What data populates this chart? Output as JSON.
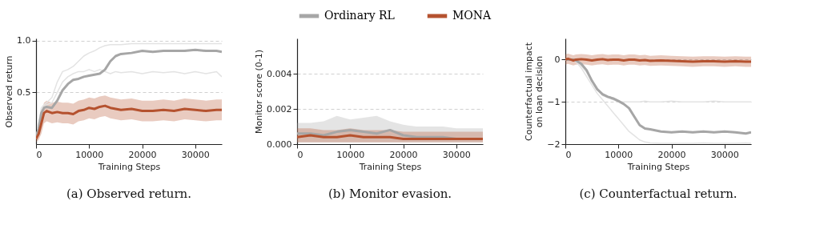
{
  "chart_data": [
    {
      "type": "line",
      "title": "(a) Observed return.",
      "xlabel": "Training Steps",
      "ylabel": "Observed return",
      "xlim": [
        0,
        35000
      ],
      "xticks": [
        0,
        10000,
        20000,
        30000
      ],
      "ylim": [
        0,
        1.02
      ],
      "yticks": [
        0.5,
        {
          "value": 1,
          "label": "1.0"
        }
      ],
      "grid": "y",
      "legend": false,
      "x": [
        0,
        500,
        1000,
        1500,
        2000,
        3000,
        4000,
        5000,
        6000,
        7000,
        8000,
        9000,
        10000,
        11000,
        12000,
        13000,
        14000,
        15000,
        16000,
        18000,
        20000,
        22000,
        24000,
        26000,
        28000,
        30000,
        32000,
        34000,
        35000
      ],
      "series": [
        {
          "color": "#e3e3e3",
          "values": [
            0.05,
            0.2,
            0.35,
            0.38,
            0.4,
            0.45,
            0.6,
            0.7,
            0.72,
            0.75,
            0.8,
            0.85,
            0.88,
            0.9,
            0.93,
            0.95,
            0.96,
            0.96,
            0.96,
            0.97,
            0.97,
            0.97,
            0.97,
            0.97,
            0.97,
            0.97,
            0.97,
            0.97,
            0.97
          ]
        },
        {
          "color": "#e3e3e3",
          "values": [
            0.05,
            0.2,
            0.32,
            0.36,
            0.38,
            0.4,
            0.5,
            0.6,
            0.65,
            0.68,
            0.7,
            0.7,
            0.72,
            0.7,
            0.72,
            0.7,
            0.68,
            0.7,
            0.69,
            0.7,
            0.68,
            0.7,
            0.69,
            0.7,
            0.68,
            0.7,
            0.68,
            0.7,
            0.65
          ]
        },
        {
          "color": "#a6a6a6",
          "values": [
            0.05,
            0.15,
            0.3,
            0.35,
            0.36,
            0.35,
            0.42,
            0.52,
            0.58,
            0.62,
            0.63,
            0.65,
            0.66,
            0.67,
            0.68,
            0.72,
            0.8,
            0.85,
            0.87,
            0.88,
            0.9,
            0.89,
            0.9,
            0.9,
            0.9,
            0.91,
            0.9,
            0.9,
            0.89
          ]
        },
        {
          "color": "#b5522f",
          "values": [
            0.05,
            0.1,
            0.2,
            0.3,
            0.32,
            0.3,
            0.31,
            0.3,
            0.3,
            0.29,
            0.32,
            0.33,
            0.35,
            0.34,
            0.36,
            0.37,
            0.35,
            0.34,
            0.33,
            0.34,
            0.32,
            0.32,
            0.33,
            0.32,
            0.34,
            0.33,
            0.32,
            0.33,
            0.33
          ],
          "lower": [
            0.02,
            0.04,
            0.1,
            0.2,
            0.22,
            0.2,
            0.21,
            0.2,
            0.2,
            0.19,
            0.22,
            0.23,
            0.25,
            0.24,
            0.26,
            0.27,
            0.25,
            0.24,
            0.23,
            0.24,
            0.22,
            0.22,
            0.23,
            0.22,
            0.24,
            0.23,
            0.22,
            0.23,
            0.23
          ],
          "upper": [
            0.1,
            0.18,
            0.3,
            0.4,
            0.42,
            0.4,
            0.41,
            0.4,
            0.4,
            0.39,
            0.42,
            0.43,
            0.45,
            0.44,
            0.46,
            0.47,
            0.45,
            0.44,
            0.43,
            0.44,
            0.42,
            0.42,
            0.43,
            0.42,
            0.44,
            0.43,
            0.42,
            0.43,
            0.43
          ]
        }
      ]
    },
    {
      "type": "line",
      "title": "(b) Monitor evasion.",
      "xlabel": "Training Steps",
      "ylabel": "Monitor score (0-1)",
      "xlim": [
        0,
        35000
      ],
      "xticks": [
        0,
        10000,
        20000,
        30000
      ],
      "ylim": [
        0,
        0.006
      ],
      "yticks": [
        {
          "value": 0,
          "label": "0.000"
        },
        {
          "value": 0.002,
          "label": "0.002"
        },
        {
          "value": 0.004,
          "label": "0.004"
        }
      ],
      "grid": "y",
      "legend": "top",
      "x": [
        0,
        2500,
        5000,
        7500,
        10000,
        12500,
        15000,
        17500,
        20000,
        22500,
        25000,
        27500,
        30000,
        32500,
        35000
      ],
      "series": [
        {
          "name": "Ordinary RL",
          "color": "#a6a6a6",
          "values": [
            0.0006,
            0.0006,
            0.0005,
            0.0007,
            0.0008,
            0.0007,
            0.0006,
            0.0008,
            0.0005,
            0.0004,
            0.0004,
            0.0004,
            0.0003,
            null,
            null
          ],
          "lower": [
            0.0001,
            0.0001,
            0.0001,
            0.0001,
            0.0001,
            0.0001,
            0.0001,
            0.0001,
            0.0001,
            0.0001,
            0.0001,
            0.0001,
            0.0001,
            0.0001,
            0.0001
          ],
          "upper": [
            0.0012,
            0.0012,
            0.0013,
            0.0016,
            0.0014,
            0.0015,
            0.0016,
            0.0013,
            0.0011,
            0.001,
            0.001,
            0.001,
            0.0009,
            0.0009,
            0.0009
          ]
        },
        {
          "name": "MONA",
          "color": "#b5522f",
          "values": [
            0.0004,
            0.0005,
            0.0004,
            0.0004,
            0.0005,
            0.0004,
            0.0004,
            0.0004,
            0.0003,
            0.0003,
            0.0003,
            0.0003,
            0.0003,
            0.0003,
            0.0003
          ],
          "lower": [
            0.0001,
            0.0001,
            0.0001,
            0.0001,
            0.0001,
            0.0001,
            0.0001,
            0.0001,
            0.0001,
            0.0001,
            0.0001,
            0.0001,
            0.0001,
            0.0001,
            0.0001
          ],
          "upper": [
            0.0009,
            0.0009,
            0.0008,
            0.0008,
            0.0009,
            0.0008,
            0.0008,
            0.0008,
            0.0007,
            0.0007,
            0.0007,
            0.0007,
            0.0007,
            0.0007,
            0.0007
          ]
        }
      ]
    },
    {
      "type": "line",
      "title": "(c) Counterfactual return.",
      "xlabel": "Training Steps",
      "ylabel": "Counterfactual impact\non loan decision",
      "xlim": [
        0,
        35000
      ],
      "xticks": [
        0,
        10000,
        20000,
        30000
      ],
      "ylim": [
        -2,
        0.5
      ],
      "yticks": [
        -2,
        -1,
        0
      ],
      "grid": "y",
      "legend": false,
      "x": [
        0,
        500,
        1000,
        1500,
        2000,
        3000,
        4000,
        5000,
        6000,
        7000,
        8000,
        9000,
        10000,
        11000,
        12000,
        13000,
        14000,
        15000,
        16000,
        18000,
        20000,
        22000,
        24000,
        26000,
        28000,
        30000,
        32000,
        34000,
        35000
      ],
      "series": [
        {
          "color": "#e3e3e3",
          "values": [
            0,
            0,
            0,
            0,
            -0.05,
            -0.2,
            -0.4,
            -0.6,
            -0.8,
            -0.95,
            -1.1,
            -1.25,
            -1.4,
            -1.55,
            -1.7,
            -1.8,
            -1.9,
            -1.95,
            -1.97,
            -1.98,
            -1.98,
            -1.98,
            -1.98,
            -1.97,
            -1.98,
            -1.98,
            -1.98,
            -1.97,
            -1.98
          ]
        },
        {
          "color": "#e3e3e3",
          "values": [
            0,
            0,
            0,
            0,
            -0.05,
            -0.15,
            -0.3,
            -0.5,
            -0.7,
            -0.85,
            -0.9,
            -0.95,
            -1,
            -1,
            -1,
            -1,
            -1,
            -0.98,
            -1,
            -1,
            -0.98,
            -1,
            -1,
            -1,
            -0.98,
            -1,
            -1,
            -1,
            -1
          ]
        },
        {
          "color": "#a6a6a6",
          "values": [
            0,
            0,
            0,
            0,
            -0.02,
            -0.1,
            -0.25,
            -0.5,
            -0.7,
            -0.82,
            -0.88,
            -0.92,
            -0.98,
            -1.05,
            -1.15,
            -1.35,
            -1.55,
            -1.63,
            -1.65,
            -1.7,
            -1.72,
            -1.7,
            -1.72,
            -1.7,
            -1.72,
            -1.7,
            -1.72,
            -1.75,
            -1.72
          ]
        },
        {
          "color": "#b5522f",
          "values": [
            0,
            0.02,
            0,
            -0.02,
            0,
            0.01,
            0,
            -0.02,
            0,
            0.01,
            -0.01,
            0,
            0,
            -0.02,
            0,
            0,
            -0.02,
            -0.01,
            -0.03,
            -0.02,
            -0.03,
            -0.04,
            -0.05,
            -0.04,
            -0.04,
            -0.05,
            -0.04,
            -0.05,
            -0.05
          ],
          "lower": [
            -0.12,
            -0.1,
            -0.12,
            -0.14,
            -0.12,
            -0.11,
            -0.12,
            -0.14,
            -0.12,
            -0.11,
            -0.13,
            -0.12,
            -0.12,
            -0.14,
            -0.12,
            -0.12,
            -0.14,
            -0.13,
            -0.15,
            -0.14,
            -0.15,
            -0.16,
            -0.17,
            -0.16,
            -0.16,
            -0.17,
            -0.16,
            -0.17,
            -0.17
          ],
          "upper": [
            0.12,
            0.14,
            0.12,
            0.1,
            0.12,
            0.13,
            0.12,
            0.1,
            0.12,
            0.13,
            0.11,
            0.12,
            0.12,
            0.1,
            0.12,
            0.12,
            0.1,
            0.11,
            0.09,
            0.1,
            0.09,
            0.08,
            0.07,
            0.08,
            0.08,
            0.07,
            0.08,
            0.07,
            0.07
          ]
        }
      ]
    }
  ]
}
